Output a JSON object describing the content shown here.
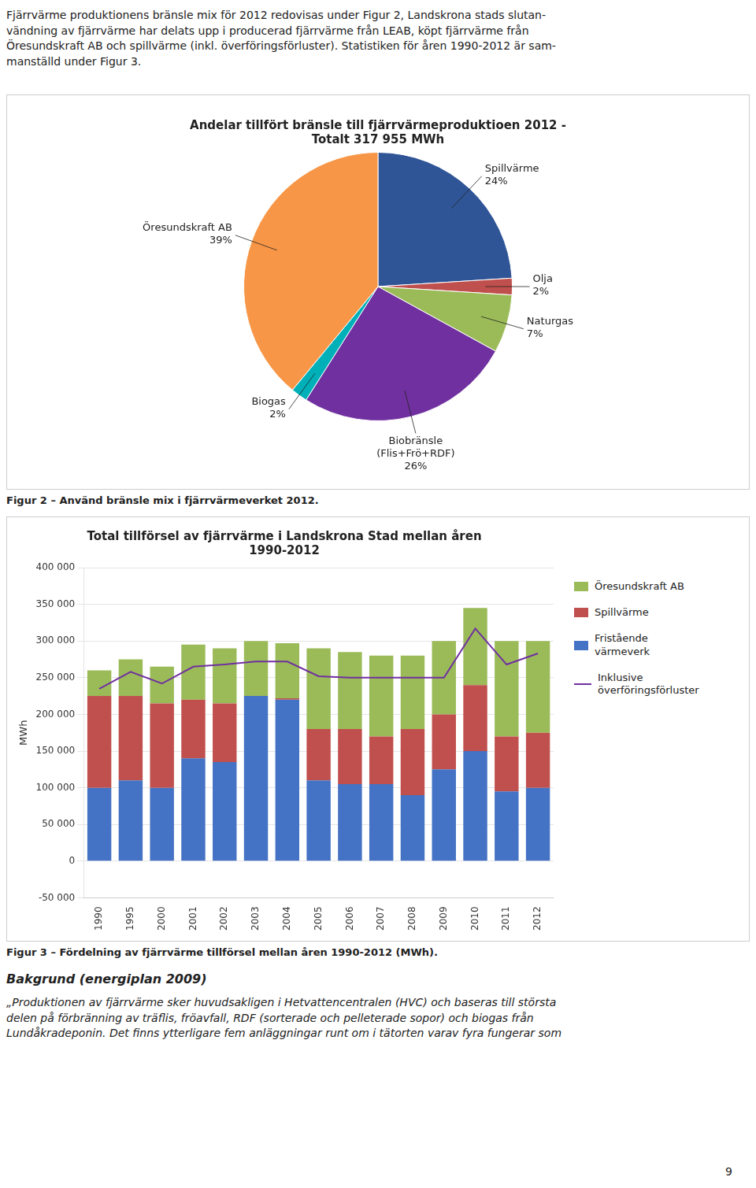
{
  "top_text": "Fjärrvärme produktionens bränsle mix för 2012 redovisas under Figur 2, Landskrona stads slutan-\nvändning av fjärrvärme har delats upp i producerad fjärrvärme från LEAB, köpt fjärrvärme från\nÖresundskraft AB och spillvärme (inkl. överföringsförluster). Statistiken för åren 1990-2012 är sam-\nmanställd under Figur 3.",
  "bottom_title": "Bakgrund (energiplan 2009)",
  "bottom_text": "„Produktionen av fjärrvärme sker huvudsakligen i Hetvattencentralen (HVC) och baseras till största\ndelen på förbränning av träflis, fröavfall, RDF (sorterade och pelleterade sopor) och biogas från\nLundåkradeponin. Det finns ytterligare fem anläggningar runt om i tätorten varav fyra fungerar som",
  "page_number": "9",
  "chart_data": [
    {
      "type": "pie",
      "title": "Andelar tillfört bränsle till fjärrvärmeproduktioen 2012 -\nTotalt 317 955 MWh",
      "caption": "Figur 2 – Använd bränsle mix i fjärrvärmeverket 2012.",
      "categories": [
        "Spillvärme",
        "Olja",
        "Naturgas",
        "Biobränsle\n(Flis+Frö+RDF)",
        "Biogas",
        "Öresundskraft AB"
      ],
      "values": [
        24,
        2,
        7,
        26,
        2,
        39
      ],
      "value_labels": [
        "24%",
        "2%",
        "7%",
        "26%",
        "2%",
        "39%"
      ],
      "colors": [
        "#2F5597",
        "#C0504D",
        "#9BBB59",
        "#7030A0",
        "#00B0B9",
        "#F79646"
      ],
      "data_labels": true
    },
    {
      "type": "bar",
      "title": "Total tillförsel av fjärrvärme i Landskrona Stad mellan åren\n1990-2012",
      "caption": "Figur 3 – Fördelning av fjärrvärme tillförsel mellan åren 1990-2012 (MWh).",
      "y_label": "MWh",
      "categories": [
        "1990",
        "1995",
        "2000",
        "2001",
        "2002",
        "2003",
        "2004",
        "2005",
        "2006",
        "2007",
        "2008",
        "2009",
        "2010",
        "2011",
        "2012"
      ],
      "stacked": true,
      "grid": true,
      "legend": "right",
      "series": [
        {
          "name": "Fristående\nvärmeverk",
          "type": "bar",
          "color": "#4472C4",
          "values": [
            100000,
            110000,
            100000,
            140000,
            135000,
            225000,
            220000,
            110000,
            105000,
            105000,
            90000,
            125000,
            150000,
            95000,
            100000
          ]
        },
        {
          "name": "Spillvärme",
          "type": "bar",
          "color": "#C0504D",
          "values": [
            125000,
            115000,
            115000,
            80000,
            80000,
            0,
            2000,
            70000,
            75000,
            65000,
            90000,
            75000,
            90000,
            75000,
            75000
          ]
        },
        {
          "name": "Öresundskraft AB",
          "type": "bar",
          "color": "#9BBB59",
          "values": [
            35000,
            50000,
            50000,
            75000,
            75000,
            75000,
            75000,
            110000,
            105000,
            110000,
            100000,
            100000,
            105000,
            130000,
            125000
          ]
        },
        {
          "name": "Inklusive\növerföringsförluster",
          "type": "line",
          "color": "#7030A0",
          "values": [
            235000,
            258000,
            242000,
            265000,
            268000,
            272000,
            272000,
            252000,
            250000,
            250000,
            250000,
            250000,
            317000,
            268000,
            283000
          ]
        }
      ],
      "ylim": [
        -50000,
        400000
      ],
      "yticks": [
        {
          "value": -50000,
          "label": "-50 000"
        },
        0,
        {
          "value": 50000,
          "label": "50 000"
        },
        {
          "value": 100000,
          "label": "100 000"
        },
        {
          "value": 150000,
          "label": "150 000"
        },
        {
          "value": 200000,
          "label": "200 000"
        },
        {
          "value": 250000,
          "label": "250 000"
        },
        {
          "value": 300000,
          "label": "300 000"
        },
        {
          "value": 350000,
          "label": "350 000"
        },
        {
          "value": 400000,
          "label": "400 000"
        }
      ]
    }
  ]
}
